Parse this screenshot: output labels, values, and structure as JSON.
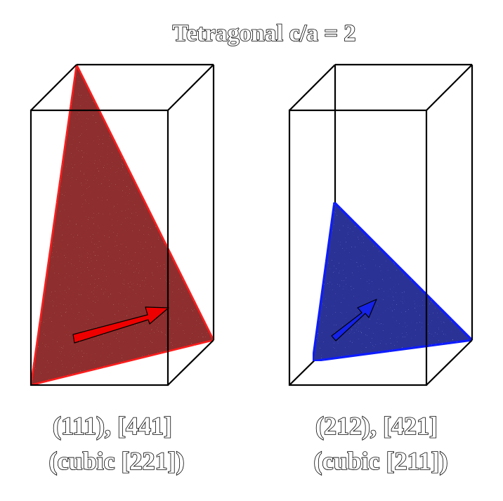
{
  "title": "Tetragonal c/a = 2",
  "panels": [
    {
      "label_line1": "(111), [441]",
      "label_line2": "(cubic [221])",
      "plane_color": "#8e2e2e",
      "edge_color": "#ff1a1a",
      "arrow_color": "#ee0000"
    },
    {
      "label_line1": "(212), [421]",
      "label_line2": "(cubic [211])",
      "plane_color": "#2c3296",
      "edge_color": "#0a1aff",
      "arrow_color": "#1522e8"
    }
  ]
}
